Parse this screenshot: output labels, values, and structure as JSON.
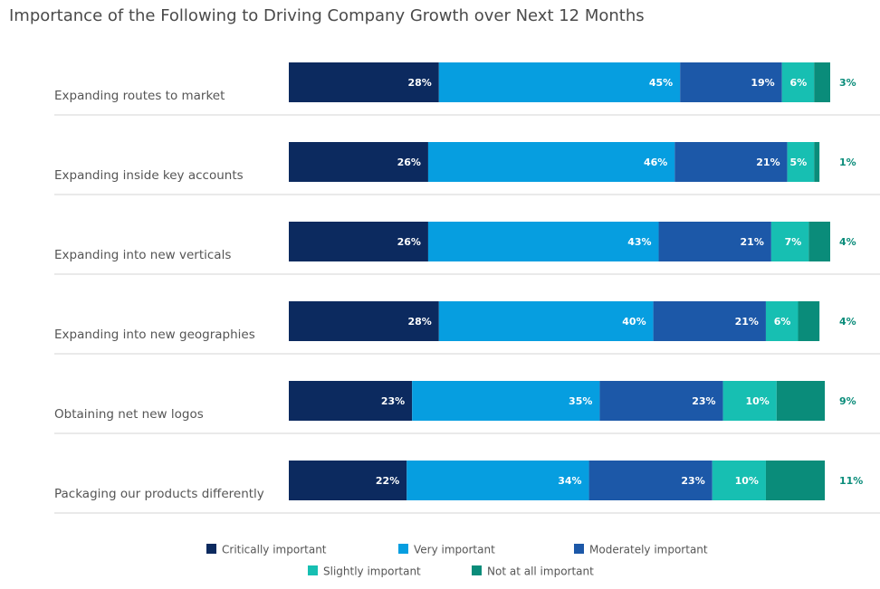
{
  "chart_data": {
    "type": "stacked-bar-horizontal",
    "title": "Importance of the Following to Driving Company Growth over Next 12 Months",
    "categories": [
      "Expanding routes to market",
      "Expanding inside key accounts",
      "Expanding into new verticals",
      "Expanding into new geographies",
      "Obtaining net new logos",
      "Packaging our products differently"
    ],
    "series": [
      {
        "name": "Critically important",
        "color": "#0c2a5f",
        "values": [
          28,
          26,
          26,
          28,
          23,
          22
        ],
        "value_labels": [
          "28%",
          "26%",
          "26%",
          "28%",
          "23%",
          "22%"
        ]
      },
      {
        "name": "Very important",
        "color": "#069ee0",
        "values": [
          45,
          46,
          43,
          40,
          35,
          34
        ],
        "value_labels": [
          "45%",
          "46%",
          "43%",
          "40%",
          "35%",
          "34%"
        ]
      },
      {
        "name": "Moderately important",
        "color": "#1c58a8",
        "values": [
          19,
          21,
          21,
          21,
          23,
          23
        ],
        "value_labels": [
          "19%",
          "21%",
          "21%",
          "21%",
          "23%",
          "23%"
        ]
      },
      {
        "name": "Slightly important",
        "color": "#17bfb2",
        "values": [
          6,
          5,
          7,
          6,
          10,
          10
        ],
        "value_labels": [
          "6%",
          "5%",
          "7%",
          "6%",
          "10%",
          "10%"
        ]
      },
      {
        "name": "Not at all important",
        "color": "#0a8c7a",
        "values": [
          3,
          1,
          4,
          4,
          9,
          11
        ],
        "value_labels": [
          "3%",
          "1%",
          "4%",
          "4%",
          "9%",
          "11%"
        ]
      }
    ]
  }
}
